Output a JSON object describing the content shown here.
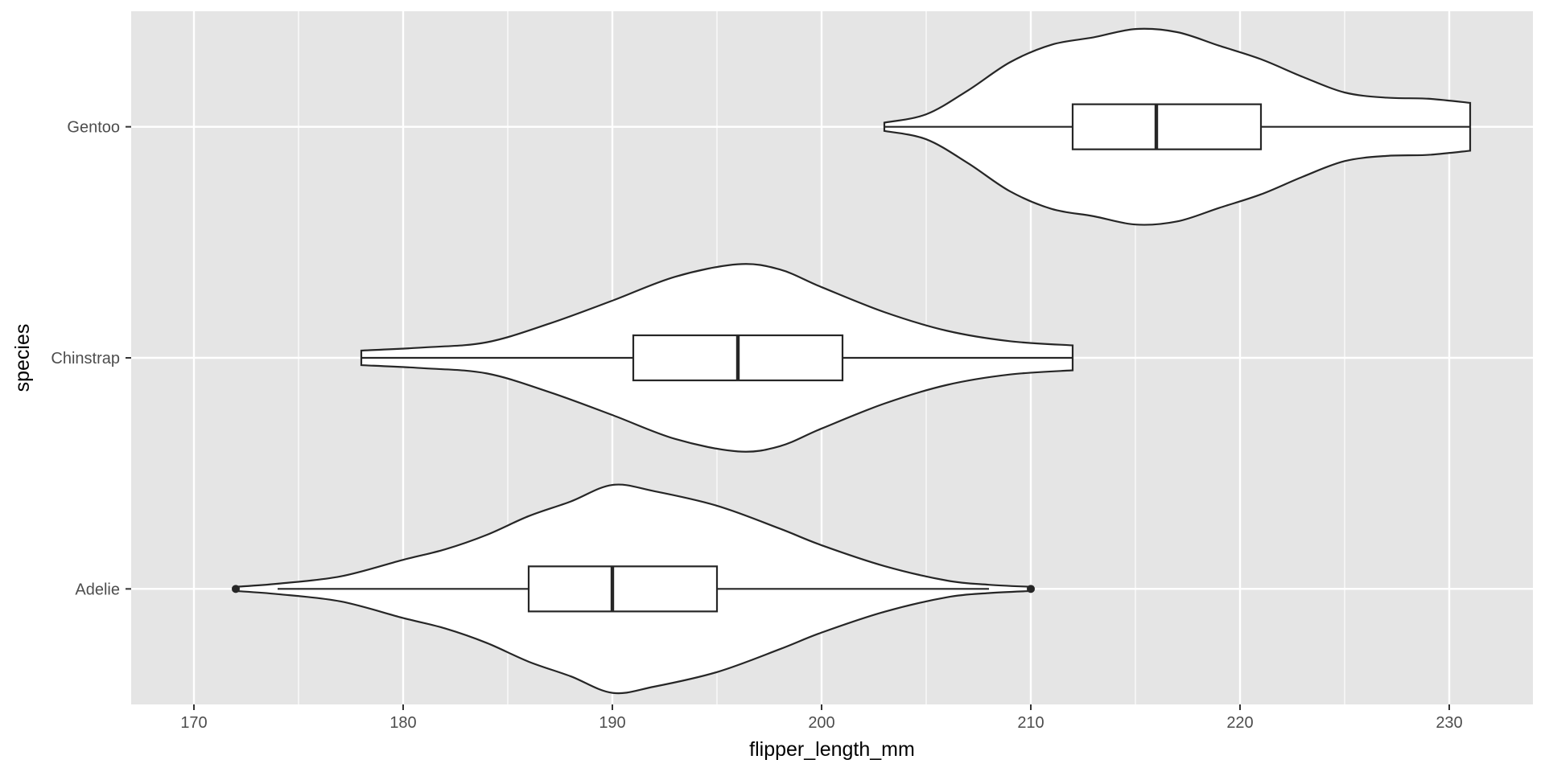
{
  "chart_data": {
    "type": "violin",
    "orientation": "horizontal",
    "xlabel": "flipper_length_mm",
    "ylabel": "species",
    "xlim": [
      167,
      234
    ],
    "x_ticks": [
      170,
      180,
      190,
      200,
      210,
      220,
      230
    ],
    "categories": [
      "Adelie",
      "Chinstrap",
      "Gentoo"
    ],
    "grid": true,
    "violins": [
      {
        "category": "Adelie",
        "density": [
          [
            172,
            0.02
          ],
          [
            174,
            0.05
          ],
          [
            177,
            0.12
          ],
          [
            180,
            0.28
          ],
          [
            182,
            0.38
          ],
          [
            184,
            0.52
          ],
          [
            186,
            0.7
          ],
          [
            188,
            0.84
          ],
          [
            190,
            1.0
          ],
          [
            192,
            0.94
          ],
          [
            195,
            0.8
          ],
          [
            198,
            0.58
          ],
          [
            200,
            0.42
          ],
          [
            203,
            0.22
          ],
          [
            206,
            0.08
          ],
          [
            208,
            0.04
          ],
          [
            210,
            0.02
          ]
        ],
        "box": {
          "whisker_low": 174,
          "q1": 186,
          "median": 190,
          "q3": 195,
          "whisker_high": 208,
          "outliers": [
            172,
            210
          ]
        }
      },
      {
        "category": "Chinstrap",
        "density": [
          [
            178,
            0.07
          ],
          [
            181,
            0.1
          ],
          [
            184,
            0.15
          ],
          [
            187,
            0.33
          ],
          [
            190,
            0.55
          ],
          [
            193,
            0.78
          ],
          [
            196,
            0.9
          ],
          [
            198,
            0.85
          ],
          [
            200,
            0.68
          ],
          [
            203,
            0.44
          ],
          [
            206,
            0.26
          ],
          [
            209,
            0.16
          ],
          [
            212,
            0.12
          ]
        ],
        "box": {
          "whisker_low": 178,
          "q1": 191,
          "median": 196,
          "q3": 201,
          "whisker_high": 212,
          "outliers": []
        }
      },
      {
        "category": "Gentoo",
        "density": [
          [
            203,
            0.04
          ],
          [
            205,
            0.12
          ],
          [
            207,
            0.35
          ],
          [
            209,
            0.62
          ],
          [
            211,
            0.79
          ],
          [
            213,
            0.86
          ],
          [
            215,
            0.94
          ],
          [
            217,
            0.91
          ],
          [
            219,
            0.78
          ],
          [
            221,
            0.65
          ],
          [
            223,
            0.48
          ],
          [
            225,
            0.33
          ],
          [
            227,
            0.28
          ],
          [
            229,
            0.27
          ],
          [
            231,
            0.23
          ]
        ],
        "box": {
          "whisker_low": 203,
          "q1": 212,
          "median": 216,
          "q3": 221,
          "whisker_high": 231,
          "outliers": []
        }
      }
    ]
  }
}
